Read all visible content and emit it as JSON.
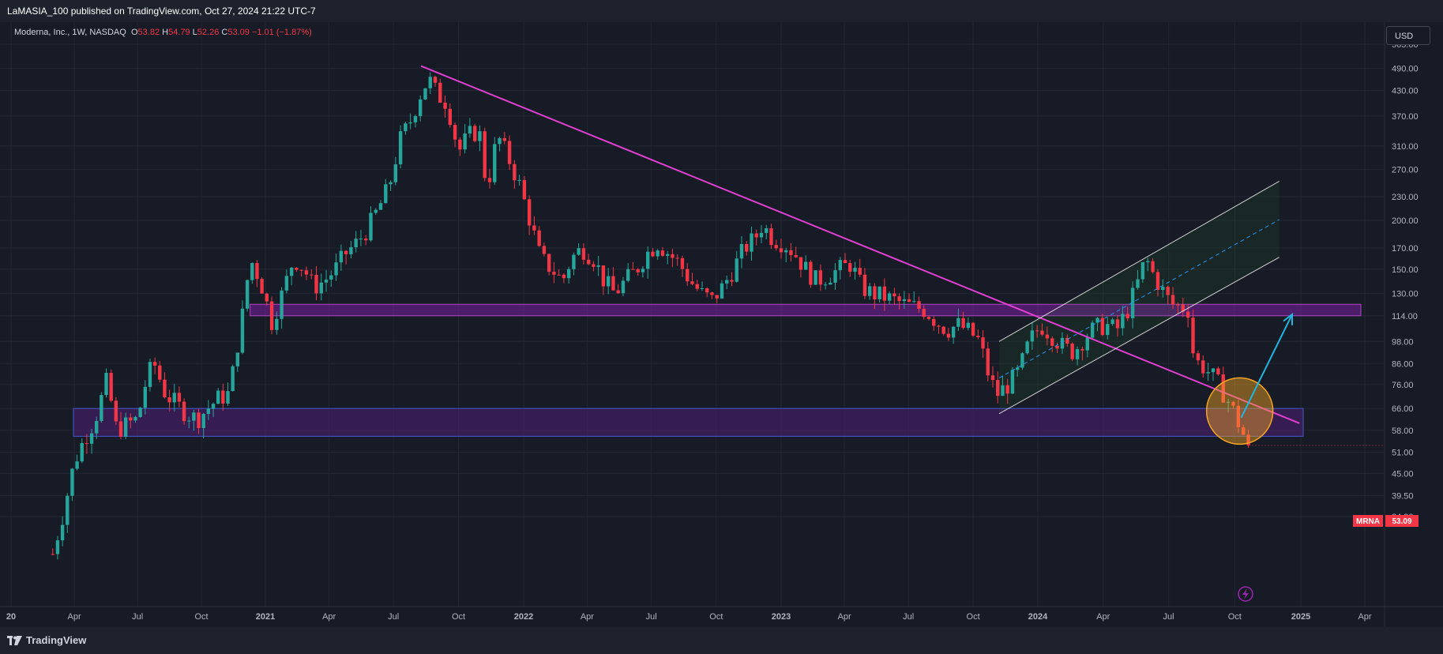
{
  "header": {
    "published": "LaMASIA_100 published on TradingView.com, Oct 27, 2024 21:22 UTC-7"
  },
  "legend": {
    "symbol": "Moderna, Inc., 1W, NASDAQ",
    "o_label": "O",
    "o_value": "53.82",
    "h_label": "H",
    "h_value": "54.79",
    "l_label": "L",
    "l_value": "52.26",
    "c_label": "C",
    "c_value": "53.09",
    "change": "−1.01 (−1.87%)"
  },
  "toolbar": {
    "currency": "USD"
  },
  "price_tag": {
    "ticker": "MRNA",
    "price": "53.09"
  },
  "footer": {
    "brand": "TradingView"
  },
  "icons": {
    "logo": "tradingview-logo-icon",
    "alert": "lightning-icon"
  },
  "colors": {
    "up": "#26a69a",
    "down": "#f23645",
    "trendline": "#e040d0",
    "zone_fill": "#7b1fa2",
    "zone_border_upper": "#ab47bc",
    "zone_border_lower": "#3f51b5",
    "channel": "#ffffff",
    "arrow": "#1fb6e0",
    "circle": "#f5a623"
  },
  "chart_data": {
    "type": "candlestick",
    "symbol": "MRNA",
    "interval": "1W",
    "exchange": "NASDAQ",
    "y_scale": "log",
    "y_ticks": [
      565.0,
      490.0,
      430.0,
      370.0,
      310.0,
      270.0,
      230.0,
      200.0,
      170.0,
      150.0,
      130.0,
      114.0,
      98.0,
      86.0,
      76.0,
      66.0,
      58.0,
      51.0,
      45.0,
      39.5,
      34.9
    ],
    "x_ticks": [
      "20",
      "Apr",
      "Jul",
      "Oct",
      "2021",
      "Apr",
      "Jul",
      "Oct",
      "2022",
      "Apr",
      "Jul",
      "Oct",
      "2023",
      "Apr",
      "Jul",
      "Oct",
      "2024",
      "Apr",
      "Jul",
      "Oct",
      "2025",
      "Apr"
    ],
    "last_price": 53.09,
    "path": [
      [
        "2020-03-01",
        28
      ],
      [
        "2020-03-15",
        35
      ],
      [
        "2020-04-01",
        48
      ],
      [
        "2020-04-15",
        55
      ],
      [
        "2020-05-01",
        62
      ],
      [
        "2020-05-18",
        78
      ],
      [
        "2020-06-01",
        58
      ],
      [
        "2020-06-15",
        60
      ],
      [
        "2020-07-01",
        62
      ],
      [
        "2020-07-15",
        80
      ],
      [
        "2020-07-25",
        86
      ],
      [
        "2020-08-10",
        72
      ],
      [
        "2020-08-25",
        68
      ],
      [
        "2020-09-10",
        64
      ],
      [
        "2020-09-25",
        62
      ],
      [
        "2020-10-10",
        66
      ],
      [
        "2020-10-25",
        70
      ],
      [
        "2020-11-10",
        72
      ],
      [
        "2020-11-20",
        92
      ],
      [
        "2020-12-01",
        120
      ],
      [
        "2020-12-10",
        160
      ],
      [
        "2020-12-25",
        140
      ],
      [
        "2021-01-10",
        110
      ],
      [
        "2021-01-25",
        130
      ],
      [
        "2021-02-10",
        160
      ],
      [
        "2021-02-25",
        150
      ],
      [
        "2021-03-10",
        135
      ],
      [
        "2021-03-25",
        140
      ],
      [
        "2021-04-10",
        150
      ],
      [
        "2021-04-25",
        165
      ],
      [
        "2021-05-10",
        175
      ],
      [
        "2021-05-25",
        190
      ],
      [
        "2021-06-10",
        215
      ],
      [
        "2021-06-25",
        245
      ],
      [
        "2021-07-10",
        320
      ],
      [
        "2021-07-25",
        360
      ],
      [
        "2021-08-10",
        430
      ],
      [
        "2021-08-20",
        460
      ],
      [
        "2021-09-01",
        420
      ],
      [
        "2021-09-15",
        400
      ],
      [
        "2021-10-01",
        300
      ],
      [
        "2021-10-15",
        330
      ],
      [
        "2021-10-30",
        340
      ],
      [
        "2021-11-10",
        240
      ],
      [
        "2021-11-25",
        330
      ],
      [
        "2021-12-10",
        290
      ],
      [
        "2021-12-25",
        250
      ],
      [
        "2022-01-10",
        200
      ],
      [
        "2022-01-25",
        160
      ],
      [
        "2022-02-10",
        150
      ],
      [
        "2022-02-25",
        140
      ],
      [
        "2022-03-10",
        160
      ],
      [
        "2022-03-25",
        170
      ],
      [
        "2022-04-10",
        160
      ],
      [
        "2022-04-25",
        140
      ],
      [
        "2022-05-10",
        130
      ],
      [
        "2022-05-25",
        140
      ],
      [
        "2022-06-10",
        150
      ],
      [
        "2022-06-25",
        165
      ],
      [
        "2022-07-10",
        175
      ],
      [
        "2022-07-25",
        165
      ],
      [
        "2022-08-10",
        155
      ],
      [
        "2022-08-25",
        140
      ],
      [
        "2022-09-10",
        130
      ],
      [
        "2022-09-25",
        125
      ],
      [
        "2022-10-10",
        135
      ],
      [
        "2022-10-25",
        150
      ],
      [
        "2022-11-10",
        170
      ],
      [
        "2022-11-25",
        180
      ],
      [
        "2022-12-05",
        195
      ],
      [
        "2022-12-20",
        180
      ],
      [
        "2023-01-05",
        175
      ],
      [
        "2023-01-20",
        165
      ],
      [
        "2023-02-05",
        150
      ],
      [
        "2023-02-20",
        140
      ],
      [
        "2023-03-10",
        145
      ],
      [
        "2023-03-25",
        150
      ],
      [
        "2023-04-10",
        155
      ],
      [
        "2023-04-25",
        135
      ],
      [
        "2023-05-10",
        130
      ],
      [
        "2023-05-25",
        128
      ],
      [
        "2023-06-10",
        125
      ],
      [
        "2023-06-25",
        122
      ],
      [
        "2023-07-10",
        120
      ],
      [
        "2023-07-25",
        118
      ],
      [
        "2023-08-10",
        110
      ],
      [
        "2023-08-25",
        105
      ],
      [
        "2023-09-10",
        108
      ],
      [
        "2023-09-25",
        104
      ],
      [
        "2023-10-10",
        98
      ],
      [
        "2023-10-25",
        78
      ],
      [
        "2023-11-05",
        72
      ],
      [
        "2023-11-20",
        76
      ],
      [
        "2023-12-05",
        82
      ],
      [
        "2023-12-20",
        98
      ],
      [
        "2024-01-05",
        108
      ],
      [
        "2024-01-20",
        102
      ],
      [
        "2024-02-05",
        95
      ],
      [
        "2024-02-20",
        92
      ],
      [
        "2024-03-05",
        100
      ],
      [
        "2024-03-20",
        106
      ],
      [
        "2024-04-05",
        108
      ],
      [
        "2024-04-20",
        105
      ],
      [
        "2024-05-05",
        118
      ],
      [
        "2024-05-20",
        140
      ],
      [
        "2024-05-30",
        160
      ],
      [
        "2024-06-10",
        145
      ],
      [
        "2024-06-25",
        130
      ],
      [
        "2024-07-05",
        122
      ],
      [
        "2024-07-20",
        120
      ],
      [
        "2024-07-30",
        118
      ],
      [
        "2024-08-05",
        88
      ],
      [
        "2024-08-20",
        84
      ],
      [
        "2024-09-05",
        78
      ],
      [
        "2024-09-20",
        70
      ],
      [
        "2024-10-01",
        64
      ],
      [
        "2024-10-10",
        58
      ],
      [
        "2024-10-21",
        53.09
      ]
    ],
    "annotations": {
      "resistance_zone": [
        114,
        122
      ],
      "support_zone": [
        56,
        66
      ],
      "trendline": [
        [
          "2021-08-09",
          497
        ],
        [
          "2024-12-30",
          60.5
        ]
      ],
      "channel_lower": [
        [
          "2023-11-07",
          64
        ],
        [
          "2024-12-02",
          161
        ]
      ],
      "channel_upper": [
        [
          "2023-11-07",
          98
        ],
        [
          "2024-12-02",
          252
        ]
      ],
      "channel_mid": [
        [
          "2023-11-07",
          79
        ],
        [
          "2024-12-02",
          201
        ]
      ],
      "arrow_target": [
        [
          "2024-10-10",
          62.5
        ],
        [
          "2024-12-20",
          115
        ]
      ],
      "highlight_circle": {
        "date": "2024-10-08",
        "price": 65
      }
    }
  }
}
